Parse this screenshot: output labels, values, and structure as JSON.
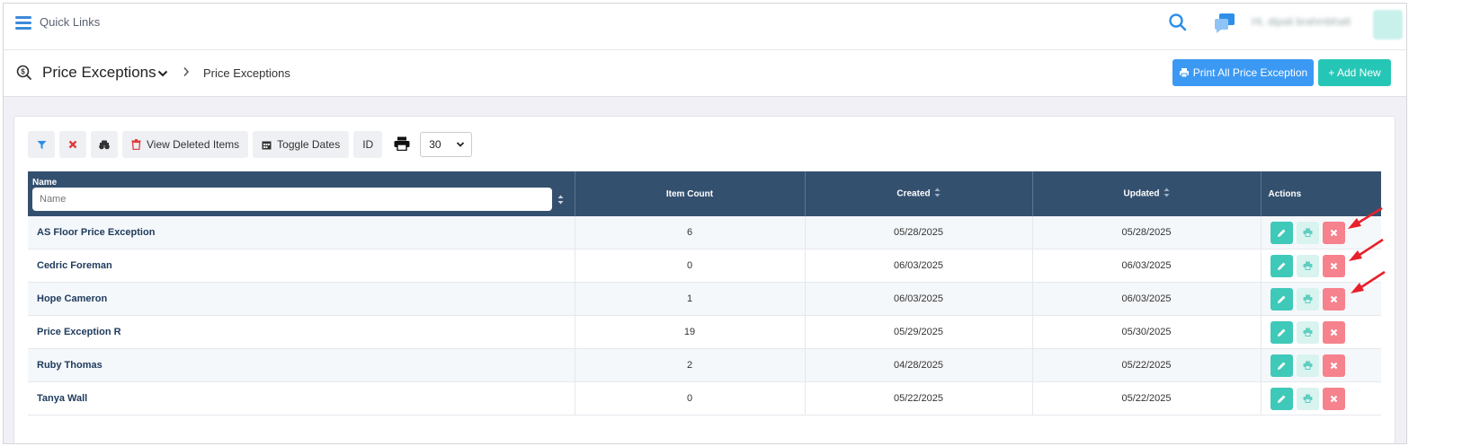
{
  "topbar": {
    "quick_links": "Quick Links",
    "user_name": "Hi, dipali brahmbhatt"
  },
  "header": {
    "page_title": "Price Exceptions",
    "breadcrumb_current": "Price Exceptions",
    "print_all_label": "Print All Price Exception",
    "add_new_label": "+ Add New"
  },
  "toolbar": {
    "view_deleted_label": "View Deleted Items",
    "toggle_dates_label": "Toggle Dates",
    "id_label": "ID",
    "page_size": "30"
  },
  "table": {
    "headers": {
      "name": "Name",
      "item_count": "Item Count",
      "created": "Created",
      "updated": "Updated",
      "actions": "Actions"
    },
    "name_filter_placeholder": "Name",
    "rows": [
      {
        "name": "AS Floor Price Exception",
        "item_count": "6",
        "created": "05/28/2025",
        "updated": "05/28/2025"
      },
      {
        "name": "Cedric Foreman",
        "item_count": "0",
        "created": "06/03/2025",
        "updated": "06/03/2025"
      },
      {
        "name": "Hope Cameron",
        "item_count": "1",
        "created": "06/03/2025",
        "updated": "06/03/2025"
      },
      {
        "name": "Price Exception R",
        "item_count": "19",
        "created": "05/29/2025",
        "updated": "05/30/2025"
      },
      {
        "name": "Ruby Thomas",
        "item_count": "2",
        "created": "04/28/2025",
        "updated": "05/22/2025"
      },
      {
        "name": "Tanya Wall",
        "item_count": "0",
        "created": "05/22/2025",
        "updated": "05/22/2025"
      }
    ]
  },
  "colors": {
    "primary_blue": "#3b99f4",
    "teal": "#26c6b6",
    "table_header": "#34506f",
    "delete_red": "#f6828d",
    "annotation_arrow": "#e8202a"
  },
  "icons": [
    "menu-icon",
    "search-icon",
    "chat-icon",
    "price-tag-icon",
    "chevron-down-icon",
    "chevron-right-icon",
    "print-icon",
    "plus-icon",
    "filter-icon",
    "close-icon",
    "binoculars-icon",
    "trash-icon",
    "calendar-icon",
    "sort-icon",
    "pencil-icon",
    "arrow-icon"
  ]
}
